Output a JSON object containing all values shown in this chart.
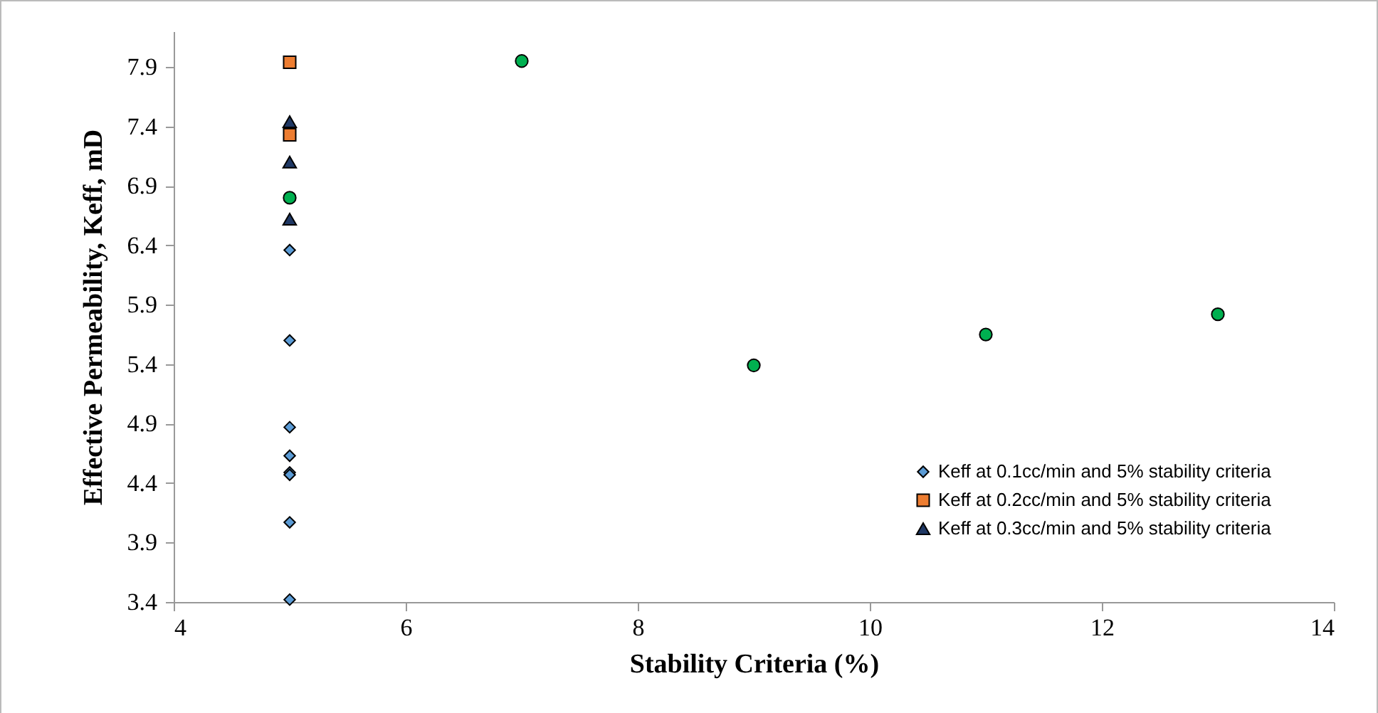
{
  "chart_data": {
    "type": "scatter",
    "xlabel": "Stability Criteria (%)",
    "ylabel": "Effective Permeability, Keff, mD",
    "series": [
      {
        "name": "Keff at 0.1cc/min and 5% stability criteria",
        "color": "#5b9bd5",
        "marker": "diamond",
        "x": [
          5,
          5,
          5,
          5,
          5,
          5,
          5,
          5
        ],
        "values": [
          6.36,
          5.6,
          4.87,
          4.63,
          4.49,
          4.47,
          4.07,
          3.42
        ]
      },
      {
        "name": "Keff at 0.2cc/min and 5% stability criteria",
        "color": "#ed7d31",
        "marker": "square",
        "x": [
          5,
          5
        ],
        "values": [
          7.94,
          7.33
        ]
      },
      {
        "name": "Keff at 0.3cc/min and 5% stability criteria",
        "color": "#1f3864",
        "marker": "triangle",
        "x": [
          5,
          5,
          5
        ],
        "values": [
          7.44,
          7.1,
          6.62
        ]
      },
      {
        "color": "#00b050",
        "marker": "circle",
        "x": [
          5,
          7,
          9,
          11,
          13
        ],
        "values": [
          6.8,
          7.95,
          5.39,
          5.65,
          5.82
        ]
      }
    ],
    "xlim": [
      4,
      14
    ],
    "xticks": [
      4,
      6,
      8,
      10,
      12,
      14
    ],
    "ylim": [
      3.4,
      8.2
    ],
    "yticks": [
      3.4,
      3.9,
      4.4,
      4.9,
      5.4,
      5.9,
      6.4,
      6.9,
      7.4,
      7.9
    ],
    "grid": false,
    "legend": "bottom right"
  }
}
